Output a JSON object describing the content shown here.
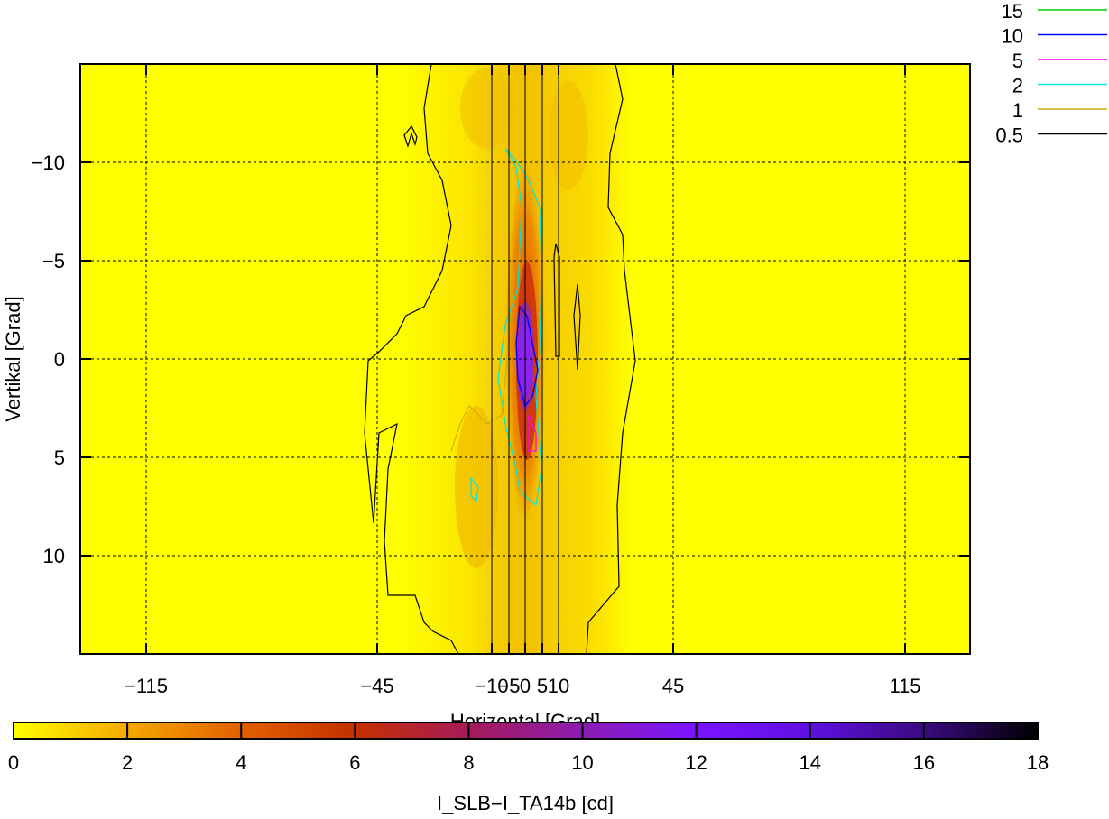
{
  "chart_data": {
    "type": "heatmap",
    "xlabel": "Horizontal [Grad]",
    "ylabel": "Vertikal [Grad]",
    "xlim": [
      -130,
      130
    ],
    "ylim": [
      -15,
      15
    ],
    "y_inverted": true,
    "x_ticks": [
      -115,
      -45,
      -10,
      -5,
      0,
      5,
      10,
      45,
      115
    ],
    "x_tick_labels": [
      "−115",
      "−45",
      "−10",
      "−5",
      "0",
      "5",
      "10",
      "45",
      "115"
    ],
    "x_minor_ticks": [
      -10,
      -5,
      0,
      5,
      10
    ],
    "y_ticks": [
      -10,
      -5,
      0,
      5,
      10
    ],
    "y_tick_labels": [
      "−10",
      "−5",
      "0",
      "5",
      "10"
    ],
    "grid": true,
    "colorbar": {
      "label": "I_SLB−I_TA14b [cd]",
      "range": [
        0,
        18
      ],
      "ticks": [
        0,
        2,
        4,
        6,
        8,
        10,
        12,
        14,
        16,
        18
      ],
      "tick_labels": [
        "0",
        "2",
        "4",
        "6",
        "8",
        "10",
        "12",
        "14",
        "16",
        "18"
      ],
      "colors": [
        "#ffff00",
        "#f5a800",
        "#e06000",
        "#c43000",
        "#a61a5a",
        "#8b1cb0",
        "#7a14ff",
        "#6010e0",
        "#3a0a80",
        "#000000"
      ]
    },
    "contour_levels": [
      {
        "label": "15",
        "color": "#00cc00"
      },
      {
        "label": "10",
        "color": "#0000ff"
      },
      {
        "label": "5",
        "color": "#ff00ff"
      },
      {
        "label": "2",
        "color": "#00e5e5"
      },
      {
        "label": "1",
        "color": "#ccaa00"
      },
      {
        "label": "0.5",
        "color": "#000000"
      }
    ],
    "legend_placement": "top-right",
    "peak": {
      "x": 0,
      "y": 0,
      "value": 12
    }
  }
}
